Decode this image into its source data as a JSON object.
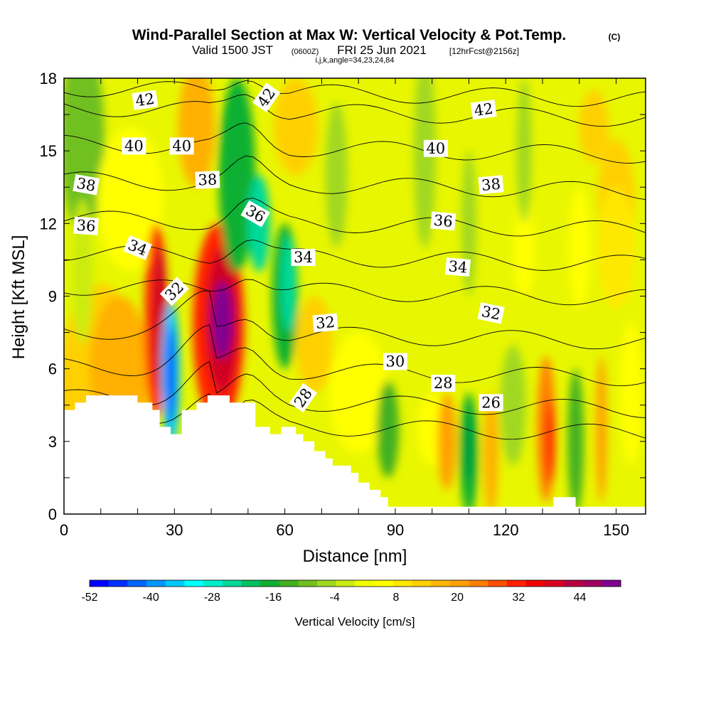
{
  "chart_data": {
    "type": "heatmap",
    "title": "Wind-Parallel Section at Max W: Vertical Velocity & Pot.Temp.",
    "title_suffix": "(C)",
    "subtitle_main": "Valid 1500 JST",
    "subtitle_utc": "(0600Z)",
    "subtitle_date": "FRI 25 Jun 2021",
    "subtitle_fcst": "[12hrFcst@2156z]",
    "subtitle_params": "i,j,k,angle=34,23,24,84",
    "xlabel": "Distance [nm]",
    "ylabel": "Height [Kft MSL]",
    "xlim": [
      0,
      158
    ],
    "ylim": [
      0,
      18
    ],
    "x_ticks": [
      0,
      30,
      60,
      90,
      120,
      150
    ],
    "y_ticks": [
      0,
      3,
      6,
      9,
      12,
      15,
      18
    ],
    "colorbar": {
      "label": "Vertical Velocity [cm/s]",
      "min": -52,
      "max": 52,
      "step": 4,
      "tick_values": [
        -52,
        -40,
        -28,
        -16,
        -4,
        8,
        20,
        32,
        44
      ],
      "colors": [
        "#0000ff",
        "#0030ff",
        "#0064ff",
        "#0096ff",
        "#00c8ff",
        "#00ffff",
        "#00eecc",
        "#00d99a",
        "#00c060",
        "#10b030",
        "#40b020",
        "#70c020",
        "#a0d820",
        "#ccec10",
        "#f0ff00",
        "#ffff00",
        "#ffe800",
        "#ffd000",
        "#ffb800",
        "#ffa000",
        "#ff8000",
        "#ff5000",
        "#ff2000",
        "#f00000",
        "#d80020",
        "#b80040",
        "#a00060",
        "#800090"
      ]
    },
    "theta_contours": {
      "unit": "C",
      "labels": [
        {
          "value": "42",
          "x": 22,
          "y": 17.1,
          "angle": -8
        },
        {
          "value": "42",
          "x": 55,
          "y": 17.2,
          "angle": -55
        },
        {
          "value": "42",
          "x": 114,
          "y": 16.7,
          "angle": -8
        },
        {
          "value": "40",
          "x": 19,
          "y": 15.2,
          "angle": 0
        },
        {
          "value": "40",
          "x": 32,
          "y": 15.2,
          "angle": 0
        },
        {
          "value": "40",
          "x": 101,
          "y": 15.1,
          "angle": 0
        },
        {
          "value": "38",
          "x": 6,
          "y": 13.6,
          "angle": 10
        },
        {
          "value": "38",
          "x": 39,
          "y": 13.8,
          "angle": -2
        },
        {
          "value": "38",
          "x": 116,
          "y": 13.6,
          "angle": -5
        },
        {
          "value": "36",
          "x": 6,
          "y": 11.9,
          "angle": 4
        },
        {
          "value": "36",
          "x": 52,
          "y": 12.4,
          "angle": 30
        },
        {
          "value": "36",
          "x": 103,
          "y": 12.1,
          "angle": 5
        },
        {
          "value": "34",
          "x": 20,
          "y": 11.0,
          "angle": 22
        },
        {
          "value": "34",
          "x": 65,
          "y": 10.6,
          "angle": 0
        },
        {
          "value": "34",
          "x": 107,
          "y": 10.2,
          "angle": 5
        },
        {
          "value": "32",
          "x": 30,
          "y": 9.2,
          "angle": -45
        },
        {
          "value": "32",
          "x": 71,
          "y": 7.9,
          "angle": -5
        },
        {
          "value": "32",
          "x": 116,
          "y": 8.3,
          "angle": 12
        },
        {
          "value": "30",
          "x": 90,
          "y": 6.3,
          "angle": 0
        },
        {
          "value": "28",
          "x": 103,
          "y": 5.4,
          "angle": 0
        },
        {
          "value": "28",
          "x": 65,
          "y": 4.8,
          "angle": -55
        },
        {
          "value": "26",
          "x": 116,
          "y": 4.6,
          "angle": 0
        }
      ]
    }
  }
}
